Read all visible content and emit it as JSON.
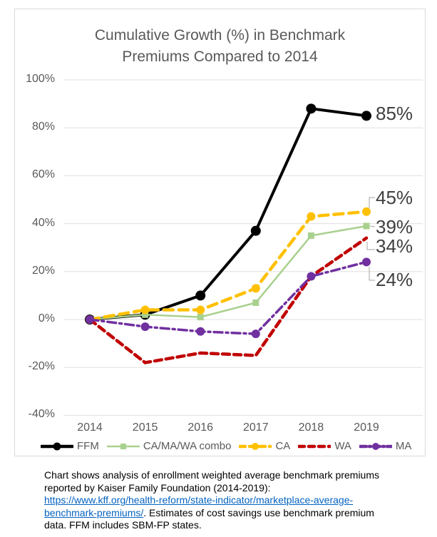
{
  "chart_card": {
    "title_line1": "Cumulative Growth (%) in Benchmark",
    "title_line2": "Premiums Compared to 2014"
  },
  "chart_data": {
    "type": "line",
    "title": "Cumulative Growth (%) in Benchmark Premiums Compared to 2014",
    "categories": [
      "2014",
      "2015",
      "2016",
      "2017",
      "2018",
      "2019"
    ],
    "y_tick_labels": [
      "100%",
      "80%",
      "60%",
      "40%",
      "20%",
      "0%",
      "-20%",
      "-40%"
    ],
    "y_tick_values": [
      100,
      80,
      60,
      40,
      20,
      0,
      -20,
      -40
    ],
    "ylim": [
      -45,
      105
    ],
    "grid": true,
    "legend_position": "bottom",
    "series": [
      {
        "name": "FFM",
        "color": "#000000",
        "line_style": "solid",
        "marker": "circle",
        "values": [
          0,
          2,
          10,
          37,
          88,
          85
        ],
        "end_label": "85%"
      },
      {
        "name": "CA/MA/WA combo",
        "color": "#a9d18e",
        "line_style": "solid",
        "marker": "square",
        "values": [
          0,
          2,
          1,
          7,
          35,
          39
        ],
        "end_label": "39%"
      },
      {
        "name": "CA",
        "color": "#ffc000",
        "line_style": "dashed",
        "marker": "circle",
        "values": [
          0,
          4,
          4,
          13,
          43,
          45
        ],
        "end_label": "45%"
      },
      {
        "name": "WA",
        "color": "#c00000",
        "line_style": "dashed",
        "marker": "none",
        "values": [
          0,
          -18,
          -14,
          -15,
          18,
          34
        ],
        "end_label": "34%"
      },
      {
        "name": "MA",
        "color": "#7030a0",
        "line_style": "dash-dot",
        "marker": "circle",
        "values": [
          0,
          -3,
          -5,
          -6,
          18,
          24
        ],
        "end_label": "24%"
      }
    ]
  },
  "footnote": {
    "text_before_link": "Chart shows analysis of enrollment weighted average benchmark premiums reported by Kaiser Family Foundation (2014-2019): ",
    "link_text": "https://www.kff.org/health-reform/state-indicator/marketplace-average-benchmark-premiums/",
    "text_after_link": ". Estimates of cost savings use benchmark premium data. FFM includes SBM-FP states.",
    "link_color": "#0563c1"
  }
}
